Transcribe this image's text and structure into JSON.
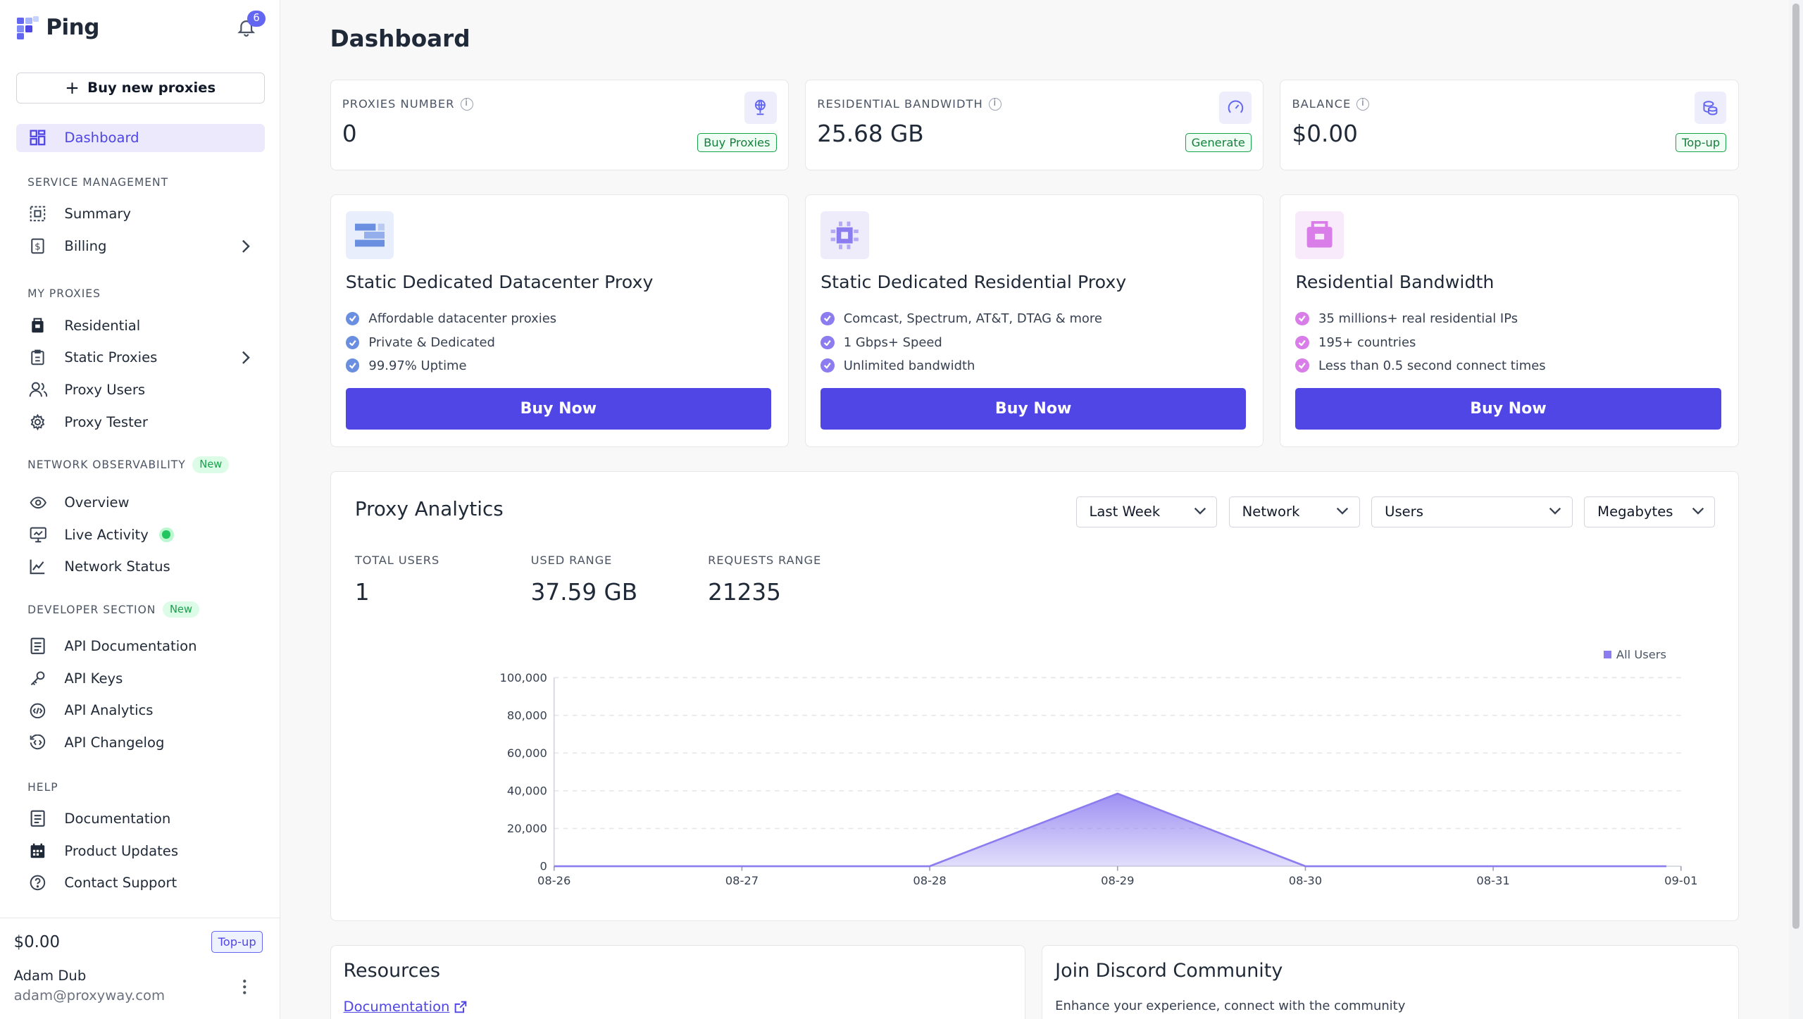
{
  "app": {
    "name": "Ping",
    "notifications_count": "6",
    "buy_new_proxies": "Buy new proxies"
  },
  "sidebar": {
    "dashboard": "Dashboard",
    "service_management": {
      "label": "SERVICE MANAGEMENT",
      "items": [
        "Summary",
        "Billing"
      ]
    },
    "my_proxies": {
      "label": "MY PROXIES",
      "items": [
        "Residential",
        "Static Proxies",
        "Proxy Users",
        "Proxy Tester"
      ]
    },
    "network_observability": {
      "label": "NETWORK OBSERVABILITY",
      "badge": "New",
      "items": [
        "Overview",
        "Live Activity",
        "Network Status"
      ]
    },
    "developer_section": {
      "label": "DEVELOPER SECTION",
      "badge": "New",
      "items": [
        "API Documentation",
        "API Keys",
        "API Analytics",
        "API Changelog"
      ]
    },
    "help": {
      "label": "HELP",
      "items": [
        "Documentation",
        "Product Updates",
        "Contact Support"
      ]
    },
    "footer": {
      "balance": "$0.00",
      "topup": "Top-up",
      "user_name": "Adam Dub",
      "user_email": "adam@proxyway.com"
    }
  },
  "main": {
    "title": "Dashboard",
    "stats": [
      {
        "label": "PROXIES NUMBER",
        "value": "0",
        "action": "Buy Proxies",
        "icon": "globe-icon"
      },
      {
        "label": "RESIDENTIAL BANDWIDTH",
        "value": "25.68 GB",
        "action": "Generate",
        "icon": "gauge-icon"
      },
      {
        "label": "BALANCE",
        "value": "$0.00",
        "action": "Top-up",
        "icon": "coins-icon"
      }
    ],
    "products": [
      {
        "title": "Static Dedicated Datacenter Proxy",
        "features": [
          "Affordable datacenter proxies",
          "Private & Dedicated",
          "99.97% Uptime"
        ],
        "cta": "Buy Now",
        "accent": "#6b8fe0"
      },
      {
        "title": "Static Dedicated Residential Proxy",
        "features": [
          "Comcast, Spectrum, AT&T, DTAG & more",
          "1 Gbps+ Speed",
          "Unlimited bandwidth"
        ],
        "cta": "Buy Now",
        "accent": "#8b7cf0"
      },
      {
        "title": "Residential Bandwidth",
        "features": [
          "35 millions+ real residential IPs",
          "195+ countries",
          "Less than 0.5 second connect times"
        ],
        "cta": "Buy Now",
        "accent": "#d97ee8"
      }
    ],
    "analytics": {
      "title": "Proxy Analytics",
      "filters": [
        "Last Week",
        "Network",
        "Users",
        "Megabytes"
      ],
      "kpis": [
        {
          "label": "TOTAL USERS",
          "value": "1"
        },
        {
          "label": "USED RANGE",
          "value": "37.59 GB"
        },
        {
          "label": "REQUESTS RANGE",
          "value": "21235"
        }
      ]
    },
    "resources": {
      "title": "Resources",
      "link": "Documentation"
    },
    "discord": {
      "title": "Join Discord Community",
      "subtitle": "Enhance your experience, connect with the community"
    }
  },
  "chart_data": {
    "type": "area",
    "x": [
      "08-26",
      "08-27",
      "08-28",
      "08-29",
      "08-30",
      "08-31",
      "09-01"
    ],
    "series": [
      {
        "name": "All Users",
        "values": [
          0,
          0,
          0,
          38500,
          0,
          0,
          0
        ]
      }
    ],
    "ylim": [
      0,
      100000
    ],
    "yticks": [
      "0",
      "20,000",
      "40,000",
      "60,000",
      "80,000",
      "100,000"
    ],
    "grid": true,
    "legend": "top-right",
    "color": "#8b7cf0"
  }
}
